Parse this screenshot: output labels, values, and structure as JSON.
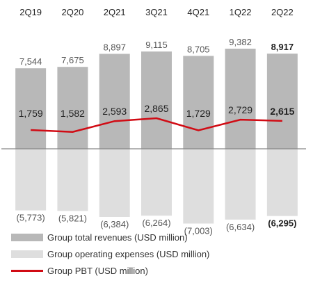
{
  "colors": {
    "revenue": "#b8b8b8",
    "expenses": "#dedede",
    "pbt": "#d10b14",
    "axis": "#888888",
    "label": "#555555",
    "label_dark": "#222222",
    "quarter": "#222222"
  },
  "chart_data": {
    "type": "bar",
    "categories": [
      "2Q19",
      "2Q20",
      "2Q21",
      "3Q21",
      "4Q21",
      "1Q22",
      "2Q22"
    ],
    "series": [
      {
        "name": "Group total revenues (USD million)",
        "type": "bar",
        "values": [
          7544,
          7675,
          8897,
          9115,
          8705,
          9382,
          8917
        ],
        "labels": [
          "7,544",
          "7,675",
          "8,897",
          "9,115",
          "8,705",
          "9,382",
          "8,917"
        ]
      },
      {
        "name": "Group operating expenses (USD million)",
        "type": "bar",
        "values": [
          -5773,
          -5821,
          -6384,
          -6264,
          -7003,
          -6634,
          -6295
        ],
        "labels": [
          "(5,773)",
          "(5,821)",
          "(6,384)",
          "(6,264)",
          "(7,003)",
          "(6,634)",
          "(6,295)"
        ]
      },
      {
        "name": "Group PBT (USD million)",
        "type": "line",
        "values": [
          1759,
          1582,
          2593,
          2865,
          1729,
          2729,
          2615
        ],
        "labels": [
          "1,759",
          "1,582",
          "2,593",
          "2,865",
          "1,729",
          "2,729",
          "2,615"
        ]
      }
    ],
    "highlight_last": true
  },
  "legend": [
    {
      "label": "Group total revenues (USD million)",
      "kind": "box",
      "color": "#b8b8b8"
    },
    {
      "label": "Group operating expenses (USD million)",
      "kind": "box",
      "color": "#dedede"
    },
    {
      "label": "Group PBT (USD million)",
      "kind": "line",
      "color": "#d10b14"
    }
  ]
}
